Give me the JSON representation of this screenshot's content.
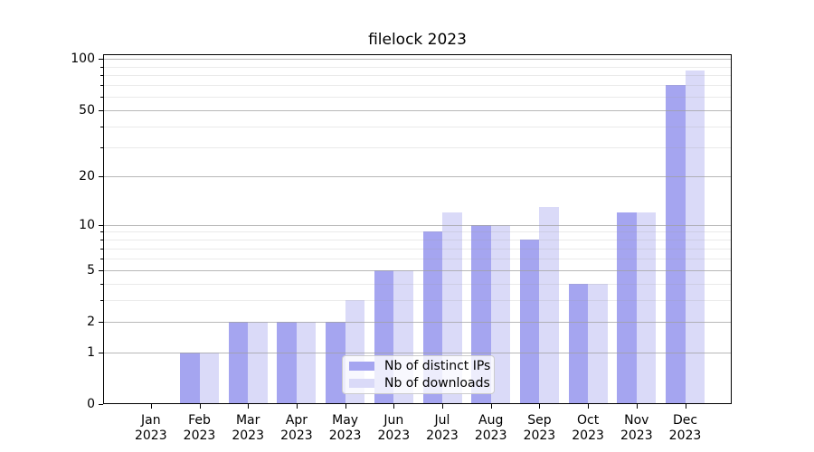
{
  "chart_data": {
    "type": "bar",
    "title": "filelock 2023",
    "categories": [
      {
        "month": "Jan",
        "year": "2023"
      },
      {
        "month": "Feb",
        "year": "2023"
      },
      {
        "month": "Mar",
        "year": "2023"
      },
      {
        "month": "Apr",
        "year": "2023"
      },
      {
        "month": "May",
        "year": "2023"
      },
      {
        "month": "Jun",
        "year": "2023"
      },
      {
        "month": "Jul",
        "year": "2023"
      },
      {
        "month": "Aug",
        "year": "2023"
      },
      {
        "month": "Sep",
        "year": "2023"
      },
      {
        "month": "Oct",
        "year": "2023"
      },
      {
        "month": "Nov",
        "year": "2023"
      },
      {
        "month": "Dec",
        "year": "2023"
      }
    ],
    "series": [
      {
        "name": "Nb of distinct IPs",
        "color": "#a5a5f0",
        "values": [
          0,
          1,
          2,
          2,
          2,
          5,
          9,
          10,
          8,
          4,
          12,
          70
        ]
      },
      {
        "name": "Nb of downloads",
        "color": "#dadaf8",
        "values": [
          0,
          1,
          2,
          2,
          3,
          5,
          12,
          10,
          13,
          4,
          12,
          85
        ]
      }
    ],
    "xlabel": "",
    "ylabel": "",
    "yscale": "log1p (symlog-like, 0 shown at bottom)",
    "major_yticks": [
      0,
      1,
      2,
      5,
      10,
      20,
      50,
      100
    ],
    "minor_yticks": [
      3,
      4,
      6,
      7,
      8,
      9,
      30,
      40,
      60,
      70,
      80,
      90
    ],
    "ylim": [
      0,
      106
    ],
    "grid": {
      "horizontal_major": true,
      "horizontal_minor": true,
      "drawn_above_bars": true
    },
    "legend": {
      "position": "lower-center-inside"
    },
    "colors": {
      "major_grid": "#bdbdbd",
      "minor_grid": "#e9e9e9",
      "spine": "#000000",
      "background": "#ffffff"
    }
  }
}
